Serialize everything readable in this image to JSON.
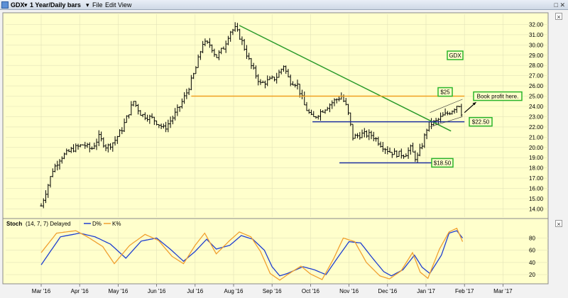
{
  "window": {
    "symbol": "GDX",
    "timeframe": "1 Year/Daily bars",
    "menu": [
      "File",
      "Edit",
      "View"
    ],
    "controls": [
      "□",
      "✕"
    ]
  },
  "colors": {
    "panel_bg": "#ffffcc",
    "bars": "#000000",
    "downtrend": "#2a9a2a",
    "resistance": "#f0a020",
    "support": "#1c2fa0",
    "stoch_d": "#1f3fd0",
    "stoch_k": "#f0a030",
    "label_border": "#2ab52a"
  },
  "chart_data": {
    "type": "line",
    "symbol": "GDX",
    "price_axis": {
      "ticks": [
        "14.00",
        "15.00",
        "16.00",
        "17.00",
        "18.00",
        "19.00",
        "20.00",
        "21.00",
        "22.00",
        "23.00",
        "24.00",
        "25.00",
        "26.00",
        "27.00",
        "28.00",
        "29.00",
        "30.00",
        "31.00",
        "32.00"
      ],
      "ylim": [
        13.2,
        33.0
      ]
    },
    "x_axis": {
      "ticks": [
        "Mar '16",
        "Apr '16",
        "May '16",
        "Jun '16",
        "Jul '16",
        "Aug '16",
        "Sep '16",
        "Oct '16",
        "Nov '16",
        "Dec '16",
        "Jan '17",
        "Feb '17",
        "Mar '17"
      ]
    },
    "price_series": {
      "name": "GDX",
      "note_shape": "daily OHLC bars",
      "points": [
        [
          0,
          14.3
        ],
        [
          0.15,
          16.0
        ],
        [
          0.3,
          17.8
        ],
        [
          0.5,
          19.0
        ],
        [
          0.8,
          19.8
        ],
        [
          1.1,
          20.3
        ],
        [
          1.3,
          19.8
        ],
        [
          1.5,
          21.0
        ],
        [
          1.7,
          20.0
        ],
        [
          1.9,
          20.6
        ],
        [
          2.1,
          21.8
        ],
        [
          2.4,
          24.5
        ],
        [
          2.6,
          23.2
        ],
        [
          2.9,
          22.8
        ],
        [
          3.2,
          21.8
        ],
        [
          3.4,
          22.8
        ],
        [
          3.6,
          24.0
        ],
        [
          3.8,
          25.5
        ],
        [
          4.0,
          27.5
        ],
        [
          4.2,
          30.2
        ],
        [
          4.4,
          30.0
        ],
        [
          4.55,
          28.8
        ],
        [
          4.75,
          29.8
        ],
        [
          4.9,
          31.3
        ],
        [
          5.05,
          31.6
        ],
        [
          5.2,
          30.5
        ],
        [
          5.45,
          28.0
        ],
        [
          5.7,
          26.2
        ],
        [
          5.9,
          26.5
        ],
        [
          6.1,
          26.8
        ],
        [
          6.3,
          28.0
        ],
        [
          6.45,
          26.5
        ],
        [
          6.65,
          26.2
        ],
        [
          6.85,
          24.0
        ],
        [
          7.05,
          22.8
        ],
        [
          7.3,
          23.6
        ],
        [
          7.6,
          24.5
        ],
        [
          7.8,
          25.0
        ],
        [
          7.95,
          23.8
        ],
        [
          8.1,
          21.0
        ],
        [
          8.35,
          21.3
        ],
        [
          8.6,
          21.2
        ],
        [
          8.85,
          20.2
        ],
        [
          9.05,
          19.6
        ],
        [
          9.2,
          19.4
        ],
        [
          9.45,
          19.3
        ],
        [
          9.6,
          19.9
        ],
        [
          9.75,
          18.8
        ],
        [
          9.9,
          20.3
        ],
        [
          10.05,
          22.2
        ],
        [
          10.25,
          22.5
        ],
        [
          10.45,
          23.1
        ],
        [
          10.6,
          23.4
        ],
        [
          10.75,
          23.9
        ],
        [
          10.85,
          24.3
        ],
        [
          10.95,
          23.0
        ]
      ]
    },
    "levels": [
      {
        "label": "$25",
        "value": 25.0
      },
      {
        "label": "$22.50",
        "value": 22.5
      },
      {
        "label": "$18.50",
        "value": 18.5
      }
    ],
    "annotations": [
      "GDX",
      "Book profit here."
    ],
    "stoch_panel": {
      "title": "Stoch",
      "params": "(14, 7, 7) Delayed",
      "ticks": [
        "20",
        "40",
        "60",
        "80"
      ],
      "ylim": [
        5,
        98
      ],
      "series": [
        {
          "name": "D%",
          "values": [
            [
              0,
              36
            ],
            [
              0.5,
              82
            ],
            [
              1.0,
              88
            ],
            [
              1.4,
              82
            ],
            [
              1.8,
              70
            ],
            [
              2.2,
              47
            ],
            [
              2.6,
              75
            ],
            [
              3.0,
              80
            ],
            [
              3.35,
              62
            ],
            [
              3.7,
              42
            ],
            [
              4.0,
              58
            ],
            [
              4.3,
              78
            ],
            [
              4.55,
              62
            ],
            [
              4.9,
              68
            ],
            [
              5.2,
              84
            ],
            [
              5.5,
              78
            ],
            [
              5.8,
              60
            ],
            [
              6.0,
              33
            ],
            [
              6.2,
              18
            ],
            [
              6.4,
              22
            ],
            [
              6.8,
              33
            ],
            [
              7.1,
              28
            ],
            [
              7.4,
              20
            ],
            [
              7.75,
              52
            ],
            [
              8.0,
              74
            ],
            [
              8.3,
              72
            ],
            [
              8.6,
              48
            ],
            [
              8.9,
              25
            ],
            [
              9.1,
              18
            ],
            [
              9.4,
              28
            ],
            [
              9.7,
              52
            ],
            [
              9.9,
              32
            ],
            [
              10.1,
              22
            ],
            [
              10.4,
              52
            ],
            [
              10.6,
              88
            ],
            [
              10.8,
              92
            ],
            [
              10.95,
              80
            ]
          ]
        },
        {
          "name": "K%",
          "values": [
            [
              0,
              56
            ],
            [
              0.4,
              88
            ],
            [
              0.9,
              92
            ],
            [
              1.2,
              82
            ],
            [
              1.6,
              66
            ],
            [
              1.9,
              38
            ],
            [
              2.3,
              68
            ],
            [
              2.7,
              86
            ],
            [
              3.05,
              76
            ],
            [
              3.4,
              50
            ],
            [
              3.7,
              38
            ],
            [
              4.0,
              68
            ],
            [
              4.25,
              88
            ],
            [
              4.55,
              54
            ],
            [
              4.9,
              76
            ],
            [
              5.15,
              90
            ],
            [
              5.45,
              82
            ],
            [
              5.7,
              58
            ],
            [
              5.95,
              22
            ],
            [
              6.2,
              11
            ],
            [
              6.4,
              20
            ],
            [
              6.75,
              34
            ],
            [
              7.0,
              21
            ],
            [
              7.3,
              12
            ],
            [
              7.6,
              46
            ],
            [
              7.85,
              80
            ],
            [
              8.15,
              74
            ],
            [
              8.45,
              40
            ],
            [
              8.8,
              18
            ],
            [
              9.05,
              13
            ],
            [
              9.35,
              26
            ],
            [
              9.65,
              56
            ],
            [
              9.85,
              24
            ],
            [
              10.05,
              14
            ],
            [
              10.35,
              62
            ],
            [
              10.6,
              90
            ],
            [
              10.8,
              96
            ],
            [
              10.95,
              74
            ]
          ]
        }
      ]
    }
  }
}
